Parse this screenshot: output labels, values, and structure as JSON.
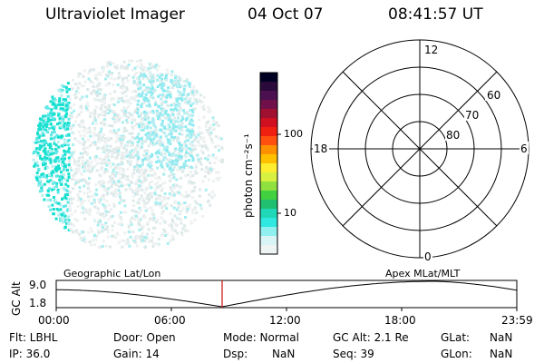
{
  "header": {
    "instrument": "Ultraviolet Imager",
    "date": "04 Oct 07",
    "time": "08:41:57 UT"
  },
  "colorbar": {
    "label": "photon cm⁻²s⁻¹",
    "ticks": [
      "100",
      "10"
    ]
  },
  "polar": {
    "mlt_labels": {
      "top": "12",
      "left": "18",
      "right": "6",
      "bottom": "0"
    },
    "lat_labels": [
      "60",
      "70",
      "80"
    ]
  },
  "timeline": {
    "left_caption": "Geographic Lat/Lon",
    "right_caption": "Apex MLat/MLT",
    "yaxis_label": "GC Alt",
    "ymax": "9.0",
    "ymin": "1.8",
    "xticks": [
      "00:00",
      "06:00",
      "12:00",
      "18:00",
      "23:59"
    ]
  },
  "info": {
    "row1": {
      "flt": "Flt: LBHL",
      "door": "Door: Open",
      "mode": "Mode: Normal",
      "gcalt": "GC Alt: 2.1 Re",
      "glat_label": "GLat:",
      "glat_value": "NaN"
    },
    "row2": {
      "ip": "IP: 36.0",
      "gain": "Gain: 14",
      "dsp_label": "Dsp:",
      "dsp_value": "NaN",
      "seq": "Seq: 39",
      "glon_label": "GLon:",
      "glon_value": "NaN"
    }
  },
  "colors": {
    "cyan": "#18e8d8",
    "light_cyan": "#aaf0f4",
    "cursor": "#d02020"
  }
}
